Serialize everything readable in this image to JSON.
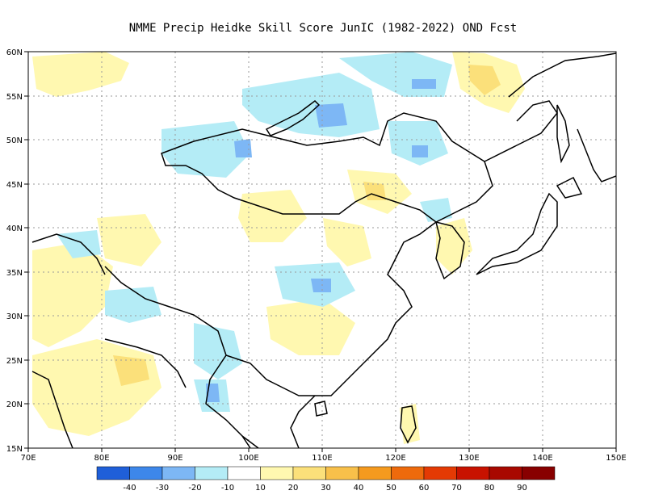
{
  "title": "NMME Precip Heidke Skill Score JunIC (1982-2022) OND Fcst",
  "map": {
    "lat_labels": [
      "60N",
      "55N",
      "50N",
      "45N",
      "40N",
      "35N",
      "30N",
      "25N",
      "20N",
      "15N"
    ],
    "lon_labels": [
      "70E",
      "80E",
      "90E",
      "100E",
      "110E",
      "120E",
      "130E",
      "140E",
      "150E"
    ],
    "grid_color": "#9a9a9a",
    "coast_color": "#000000"
  },
  "legend": {
    "colors": [
      "#1f5fd9",
      "#3d87ea",
      "#7db7f5",
      "#b4ecf6",
      "#ffffff",
      "#fff8b0",
      "#fbe07a",
      "#f8c04a",
      "#f59a1e",
      "#ee6a0c",
      "#e43a04",
      "#c81200",
      "#a80800",
      "#880000"
    ],
    "labels": [
      "-40",
      "-30",
      "-20",
      "-10",
      "10",
      "20",
      "30",
      "40",
      "50",
      "60",
      "70",
      "80",
      "90"
    ]
  },
  "patches": [
    {
      "level": 20,
      "color": "#fff8b0"
    },
    {
      "level": 30,
      "color": "#fbe07a"
    },
    {
      "level": -10,
      "color": "#b4ecf6"
    },
    {
      "level": -20,
      "color": "#7db7f5"
    }
  ]
}
